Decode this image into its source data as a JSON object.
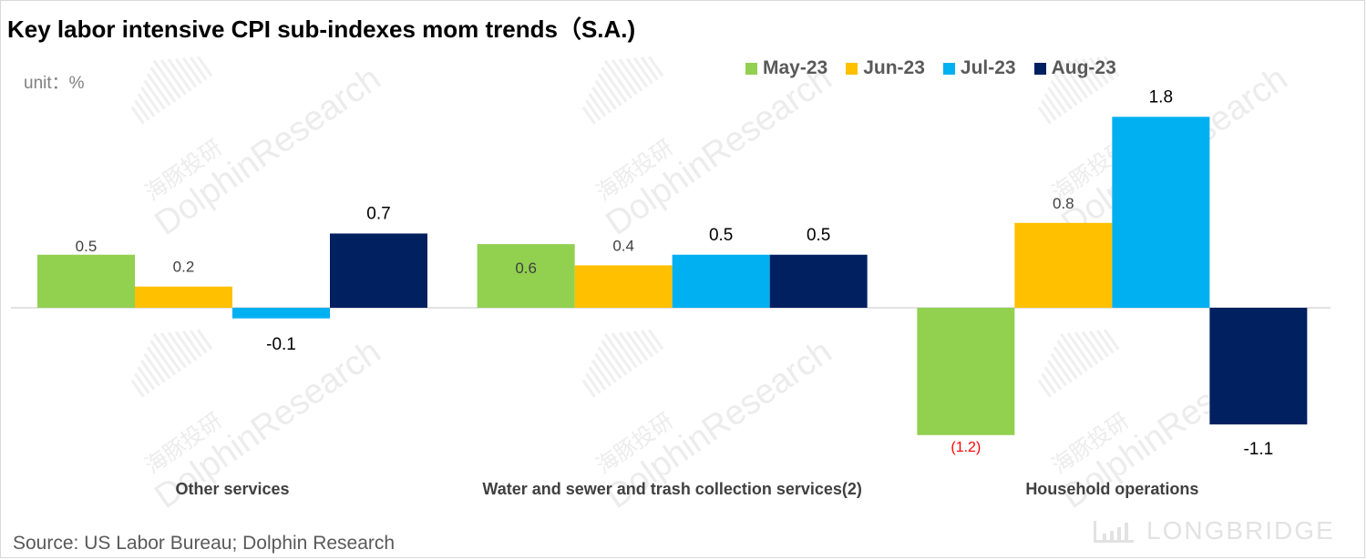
{
  "title": "Key labor intensive CPI sub-indexes mom trends（S.A.)",
  "unit_label": "unit：%",
  "source": "Source: US Labor Bureau; Dolphin Research",
  "brand": "LONGBRIDGE",
  "watermark": {
    "chinese": "海豚投研",
    "english": "DolphinResearch"
  },
  "colors": {
    "May-23": "#92d050",
    "Jun-23": "#ffc000",
    "Jul-23": "#00b0f0",
    "Aug-23": "#002060",
    "negative_label": "#ff0000"
  },
  "chart_data": {
    "type": "bar",
    "title": "Key labor intensive CPI sub-indexes mom trends（S.A.)",
    "ylabel": "unit：%",
    "categories": [
      "Other services",
      "Water and sewer and trash collection services(2)",
      "Household operations"
    ],
    "series": [
      {
        "name": "May-23",
        "values": [
          0.5,
          0.6,
          -1.2
        ],
        "labels": [
          "0.5",
          "0.6",
          "(1.2)"
        ]
      },
      {
        "name": "Jun-23",
        "values": [
          0.2,
          0.4,
          0.8
        ],
        "labels": [
          "0.2",
          "0.4",
          "0.8"
        ]
      },
      {
        "name": "Jul-23",
        "values": [
          -0.1,
          0.5,
          1.8
        ],
        "labels": [
          "-0.1",
          "0.5",
          "1.8"
        ]
      },
      {
        "name": "Aug-23",
        "values": [
          0.7,
          0.5,
          -1.1
        ],
        "labels": [
          "0.7",
          "0.5",
          "-1.1"
        ]
      }
    ],
    "ylim": [
      -1.9,
      1.9
    ],
    "grid": false,
    "legend_position": "top-right"
  }
}
